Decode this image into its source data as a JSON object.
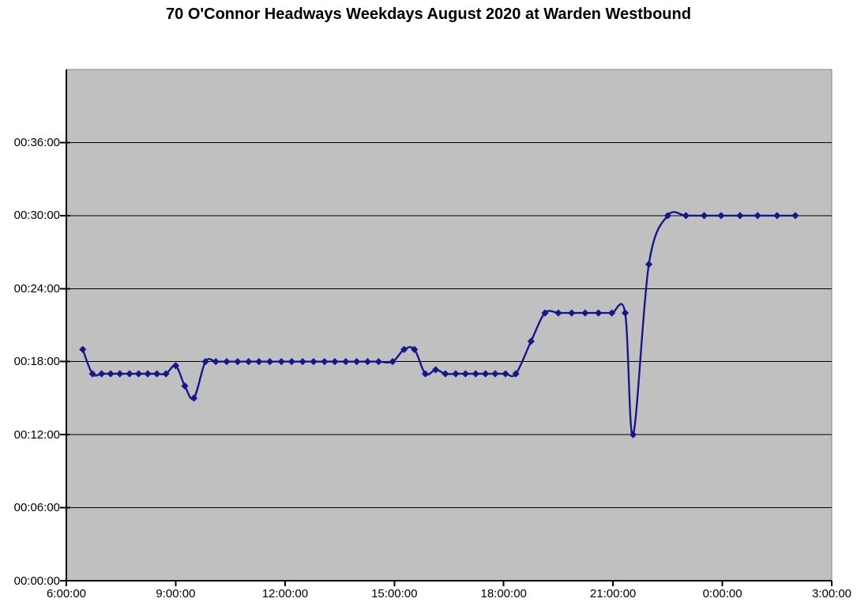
{
  "page": {
    "background": "#ffffff"
  },
  "chart_data": {
    "type": "line",
    "smoothed": true,
    "title": "70 O'Connor Headways Weekdays August 2020 at Warden Westbound",
    "series_name": "Headway",
    "legend": "none",
    "grid": "horizontal-on",
    "line_color": "#17178c",
    "marker": "diamond",
    "marker_color": "#17178c",
    "plot_bg_color": "#c0c0c0",
    "grid_color": "#000000",
    "axis_color": "#000000",
    "plot_border_color": "#828282",
    "x_axis": {
      "tick_labels": [
        "6:00:00",
        "9:00:00",
        "12:00:00",
        "15:00:00",
        "18:00:00",
        "21:00:00",
        "0:00:00",
        "3:00:00"
      ],
      "range_hours": [
        6,
        27
      ],
      "tick_step_hours": 3
    },
    "y_axis": {
      "tick_labels": [
        "00:00:00",
        "00:06:00",
        "00:12:00",
        "00:18:00",
        "00:24:00",
        "00:30:00",
        "00:36:00"
      ],
      "range_minutes": [
        0,
        42
      ],
      "grid_step_minutes": 6
    },
    "points": [
      {
        "time": "06:27",
        "headway": "00:19:00"
      },
      {
        "time": "06:43",
        "headway": "00:17:00"
      },
      {
        "time": "06:58",
        "headway": "00:17:00"
      },
      {
        "time": "07:13",
        "headway": "00:17:00"
      },
      {
        "time": "07:28",
        "headway": "00:17:00"
      },
      {
        "time": "07:44",
        "headway": "00:17:00"
      },
      {
        "time": "07:59",
        "headway": "00:17:00"
      },
      {
        "time": "08:14",
        "headway": "00:17:00"
      },
      {
        "time": "08:29",
        "headway": "00:17:00"
      },
      {
        "time": "08:44",
        "headway": "00:17:00"
      },
      {
        "time": "09:00",
        "headway": "00:17:40"
      },
      {
        "time": "09:15",
        "headway": "00:16:00"
      },
      {
        "time": "09:30",
        "headway": "00:15:00"
      },
      {
        "time": "09:49",
        "headway": "00:18:00"
      },
      {
        "time": "10:06",
        "headway": "00:18:00"
      },
      {
        "time": "10:24",
        "headway": "00:18:00"
      },
      {
        "time": "10:42",
        "headway": "00:18:00"
      },
      {
        "time": "11:00",
        "headway": "00:18:00"
      },
      {
        "time": "11:17",
        "headway": "00:18:00"
      },
      {
        "time": "11:35",
        "headway": "00:18:00"
      },
      {
        "time": "11:54",
        "headway": "00:18:00"
      },
      {
        "time": "12:11",
        "headway": "00:18:00"
      },
      {
        "time": "12:29",
        "headway": "00:18:00"
      },
      {
        "time": "12:47",
        "headway": "00:18:00"
      },
      {
        "time": "13:05",
        "headway": "00:18:00"
      },
      {
        "time": "13:22",
        "headway": "00:18:00"
      },
      {
        "time": "13:40",
        "headway": "00:18:00"
      },
      {
        "time": "13:58",
        "headway": "00:18:00"
      },
      {
        "time": "14:16",
        "headway": "00:18:00"
      },
      {
        "time": "14:34",
        "headway": "00:18:00"
      },
      {
        "time": "14:57",
        "headway": "00:18:00"
      },
      {
        "time": "15:16",
        "headway": "00:19:00"
      },
      {
        "time": "15:33",
        "headway": "00:19:00"
      },
      {
        "time": "15:51",
        "headway": "00:17:00"
      },
      {
        "time": "16:08",
        "headway": "00:17:20"
      },
      {
        "time": "16:24",
        "headway": "00:17:00"
      },
      {
        "time": "16:41",
        "headway": "00:17:00"
      },
      {
        "time": "16:57",
        "headway": "00:17:00"
      },
      {
        "time": "17:14",
        "headway": "00:17:00"
      },
      {
        "time": "17:30",
        "headway": "00:17:00"
      },
      {
        "time": "17:46",
        "headway": "00:17:00"
      },
      {
        "time": "18:03",
        "headway": "00:17:00"
      },
      {
        "time": "18:20",
        "headway": "00:17:00"
      },
      {
        "time": "18:45",
        "headway": "00:19:40"
      },
      {
        "time": "19:08",
        "headway": "00:22:00"
      },
      {
        "time": "19:30",
        "headway": "00:22:00"
      },
      {
        "time": "19:52",
        "headway": "00:22:00"
      },
      {
        "time": "20:14",
        "headway": "00:22:00"
      },
      {
        "time": "20:36",
        "headway": "00:22:00"
      },
      {
        "time": "20:58",
        "headway": "00:22:00"
      },
      {
        "time": "21:20",
        "headway": "00:22:00"
      },
      {
        "time": "21:33",
        "headway": "00:12:00"
      },
      {
        "time": "21:59",
        "headway": "00:26:00"
      },
      {
        "time": "22:30",
        "headway": "00:30:00"
      },
      {
        "time": "23:00",
        "headway": "00:30:00"
      },
      {
        "time": "23:30",
        "headway": "00:30:00"
      },
      {
        "time": "23:58",
        "headway": "00:30:00"
      },
      {
        "time": "00:29",
        "headway": "00:30:00"
      },
      {
        "time": "00:58",
        "headway": "00:30:00"
      },
      {
        "time": "01:30",
        "headway": "00:30:00"
      },
      {
        "time": "02:00",
        "headway": "00:30:00"
      }
    ]
  }
}
